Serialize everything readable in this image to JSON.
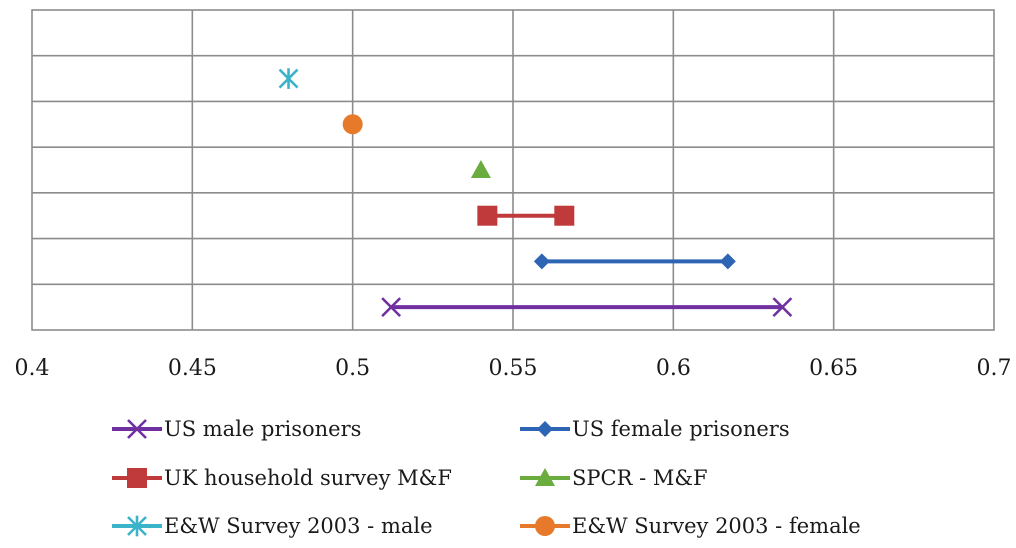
{
  "chart_data": {
    "type": "scatter",
    "title": "",
    "xlabel": "",
    "ylabel": "",
    "xlim": [
      0.4,
      0.7
    ],
    "xticks": [
      "0.4",
      "0.45",
      "0.5",
      "0.55",
      "0.6",
      "0.65",
      "0.7"
    ],
    "xtick_values": [
      0.4,
      0.45,
      0.5,
      0.55,
      0.6,
      0.65,
      0.7
    ],
    "grid": true,
    "legend_position": "bottom",
    "rows": 7,
    "series": [
      {
        "name": "US male prisoners",
        "color": "#7030a0",
        "marker": "x",
        "row": 6,
        "values": [
          0.512,
          0.634
        ]
      },
      {
        "name": "US female prisoners",
        "color": "#2e64b4",
        "marker": "diamond",
        "row": 5,
        "values": [
          0.559,
          0.617
        ]
      },
      {
        "name": "UK household survey M&F",
        "color": "#c0393b",
        "marker": "square",
        "row": 4,
        "values": [
          0.542,
          0.566
        ]
      },
      {
        "name": "SPCR - M&F",
        "color": "#6aac3e",
        "marker": "triangle",
        "row": 3,
        "values": [
          0.54
        ]
      },
      {
        "name": "E&W Survey 2003 - male",
        "color": "#3bb3c9",
        "marker": "asterisk",
        "row": 1,
        "values": [
          0.48
        ]
      },
      {
        "name": "E&W Survey 2003 - female",
        "color": "#e6792a",
        "marker": "circle",
        "row": 2,
        "values": [
          0.5
        ]
      }
    ]
  }
}
